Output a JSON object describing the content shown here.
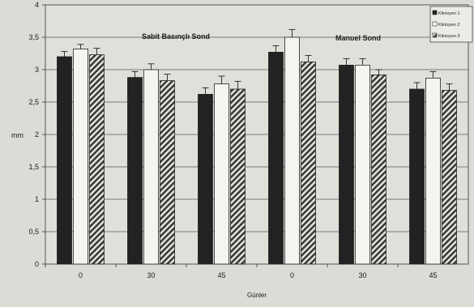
{
  "chart_data": {
    "type": "bar",
    "ylabel": "mm",
    "xlabel": "Günler",
    "ylim": [
      0,
      4
    ],
    "yticks": [
      "0",
      "0,5",
      "1",
      "1,5",
      "2",
      "2,5",
      "3",
      "3,5",
      "4"
    ],
    "categories": [
      "0",
      "30",
      "45",
      "0",
      "30",
      "45"
    ],
    "group_labels": [
      "Sabit Basınçlı Sond",
      "Manuel Sond"
    ],
    "grid": true,
    "legend_position": "top-right",
    "series": [
      {
        "name": "Klinisyen 1",
        "fill": "solid-dark",
        "color": "#222222",
        "values": [
          3.2,
          2.88,
          2.62,
          3.27,
          3.07,
          2.7
        ],
        "errors": [
          0.08,
          0.09,
          0.1,
          0.1,
          0.1,
          0.1
        ]
      },
      {
        "name": "Klinisyen 2",
        "fill": "white",
        "color": "#f4f4f0",
        "values": [
          3.32,
          3.0,
          2.78,
          3.5,
          3.07,
          2.87
        ],
        "errors": [
          0.07,
          0.09,
          0.12,
          0.12,
          0.1,
          0.1
        ]
      },
      {
        "name": "Klinisyen 3",
        "fill": "hatched",
        "color": "#4a4a4a",
        "values": [
          3.23,
          2.83,
          2.7,
          3.12,
          2.92,
          2.68
        ],
        "errors": [
          0.1,
          0.1,
          0.12,
          0.1,
          0.08,
          0.1
        ]
      }
    ]
  }
}
